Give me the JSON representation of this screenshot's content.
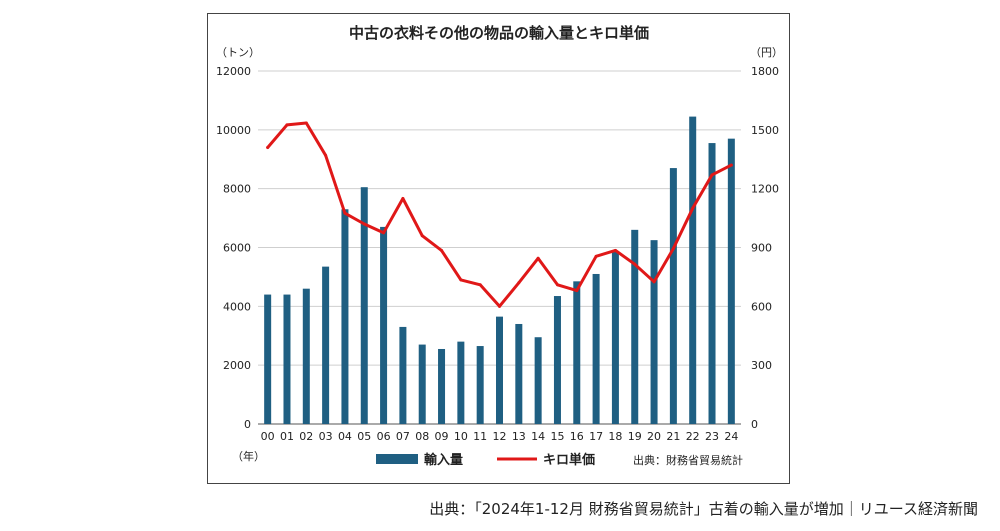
{
  "chart_data": {
    "type": "bar+line",
    "title": "中古の衣料その他の物品の輸入量とキロ単価",
    "left_unit": "（トン）",
    "right_unit": "（円）",
    "x_unit": "（年）",
    "categories": [
      "00",
      "01",
      "02",
      "03",
      "04",
      "05",
      "06",
      "07",
      "08",
      "09",
      "10",
      "11",
      "12",
      "13",
      "14",
      "15",
      "16",
      "17",
      "18",
      "19",
      "20",
      "21",
      "22",
      "23",
      "24"
    ],
    "left_ticks": [
      "0",
      "2000",
      "4000",
      "6000",
      "8000",
      "10000",
      "12000"
    ],
    "right_ticks": [
      "0",
      "300",
      "600",
      "900",
      "1200",
      "1500",
      "1800"
    ],
    "left_ylim": [
      0,
      12000
    ],
    "right_ylim": [
      0,
      1800
    ],
    "series": [
      {
        "name": "輸入量",
        "type": "bar",
        "axis": "left",
        "color": "#1f5f82",
        "values": [
          4400,
          4400,
          4600,
          5350,
          7300,
          8050,
          6700,
          3300,
          2700,
          2550,
          2800,
          2650,
          3650,
          3400,
          2950,
          4350,
          4850,
          5100,
          5850,
          6600,
          6250,
          8700,
          10450,
          9550,
          9700
        ]
      },
      {
        "name": "キロ単価",
        "type": "line",
        "axis": "right",
        "color": "#e01818",
        "values": [
          1410,
          1525,
          1535,
          1370,
          1075,
          1020,
          975,
          1150,
          960,
          885,
          735,
          710,
          600,
          720,
          845,
          710,
          680,
          855,
          885,
          815,
          725,
          895,
          1100,
          1270,
          1320
        ]
      }
    ],
    "source_note": "出典：財務省貿易統計"
  },
  "caption": "出典：「2024年1-12月 財務省貿易統計」古着の輸入量が増加｜リユース経済新聞"
}
